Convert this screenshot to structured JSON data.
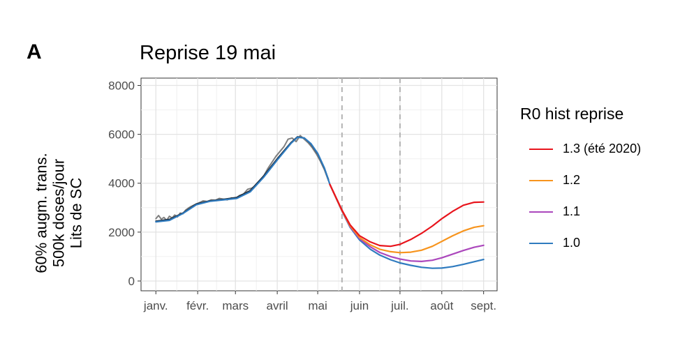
{
  "panel_label": "A",
  "chart_data": {
    "type": "line",
    "title": "Reprise 19 mai",
    "ylabel_lines": [
      "60% augm. trans.",
      "500k doses/jour",
      "Lits de SC"
    ],
    "xlabel": "",
    "x_tick_labels": [
      "janv.",
      "févr.",
      "mars",
      "avril",
      "mai",
      "juin",
      "juil.",
      "août",
      "sept."
    ],
    "x_tick_days": [
      1,
      32,
      60,
      91,
      121,
      152,
      182,
      213,
      244
    ],
    "xlim_days": [
      -10,
      254
    ],
    "ylim": [
      -400,
      8300
    ],
    "y_ticks": [
      0,
      2000,
      4000,
      6000,
      8000
    ],
    "grid": true,
    "vlines_days": [
      139,
      182
    ],
    "legend_title": "R0 hist reprise",
    "legend_position": "right",
    "observed": {
      "color": "#7f7f7f",
      "x": [
        1,
        3,
        5,
        7,
        9,
        11,
        13,
        15,
        17,
        19,
        21,
        23,
        25,
        27,
        29,
        31,
        33,
        36,
        39,
        42,
        45,
        48,
        51,
        54,
        57,
        60,
        63,
        66,
        69,
        72,
        75,
        78,
        81,
        84,
        87,
        90,
        93,
        96,
        99,
        102,
        105,
        108,
        111,
        114,
        117,
        120,
        123,
        126,
        129
      ],
      "y": [
        2550,
        2680,
        2530,
        2600,
        2480,
        2650,
        2580,
        2700,
        2620,
        2780,
        2750,
        2900,
        2980,
        3050,
        3100,
        3150,
        3200,
        3280,
        3250,
        3320,
        3300,
        3380,
        3350,
        3320,
        3400,
        3380,
        3500,
        3560,
        3750,
        3800,
        3900,
        4100,
        4300,
        4600,
        4850,
        5100,
        5300,
        5500,
        5800,
        5850,
        5700,
        5950,
        5800,
        5650,
        5450,
        5200,
        4900,
        4550,
        4100
      ]
    },
    "fitted": {
      "color": "#1b2a3a",
      "x": [
        1,
        11,
        21,
        31,
        41,
        51,
        61,
        71,
        81,
        91,
        101,
        106,
        111,
        116,
        121,
        126,
        129
      ],
      "y": [
        2450,
        2520,
        2780,
        3150,
        3280,
        3340,
        3420,
        3700,
        4300,
        5000,
        5650,
        5900,
        5850,
        5600,
        5200,
        4600,
        4150
      ]
    },
    "series": [
      {
        "name": "1.3 (été 2020)",
        "color": "#e8141c",
        "x": [
          130,
          139,
          145,
          152,
          160,
          167,
          175,
          182,
          190,
          198,
          206,
          213,
          221,
          229,
          237,
          244
        ],
        "y": [
          3950,
          2900,
          2300,
          1850,
          1600,
          1450,
          1420,
          1500,
          1700,
          1950,
          2250,
          2550,
          2850,
          3100,
          3220,
          3230
        ]
      },
      {
        "name": "1.2",
        "color": "#f7941d",
        "x": [
          130,
          139,
          145,
          152,
          160,
          167,
          175,
          182,
          190,
          198,
          206,
          213,
          221,
          229,
          237,
          244
        ],
        "y": [
          3950,
          2880,
          2260,
          1780,
          1480,
          1300,
          1200,
          1160,
          1180,
          1260,
          1420,
          1620,
          1850,
          2050,
          2200,
          2260
        ]
      },
      {
        "name": "1.1",
        "color": "#ab47bc",
        "x": [
          130,
          139,
          145,
          152,
          160,
          167,
          175,
          182,
          190,
          198,
          206,
          213,
          221,
          229,
          237,
          244
        ],
        "y": [
          3950,
          2870,
          2230,
          1730,
          1400,
          1170,
          1000,
          900,
          820,
          800,
          850,
          950,
          1100,
          1250,
          1380,
          1460
        ]
      },
      {
        "name": "1.0",
        "color": "#2f7bbf",
        "x": [
          1,
          11,
          21,
          31,
          41,
          51,
          61,
          71,
          81,
          91,
          101,
          106,
          111,
          116,
          121,
          126,
          130,
          139,
          145,
          152,
          160,
          167,
          175,
          182,
          190,
          198,
          206,
          213,
          221,
          229,
          237,
          244
        ],
        "y": [
          2420,
          2480,
          2760,
          3120,
          3260,
          3320,
          3380,
          3650,
          4250,
          4950,
          5620,
          5880,
          5850,
          5620,
          5220,
          4620,
          3950,
          2860,
          2200,
          1680,
          1300,
          1060,
          870,
          740,
          640,
          560,
          520,
          530,
          590,
          680,
          790,
          880
        ]
      }
    ]
  }
}
